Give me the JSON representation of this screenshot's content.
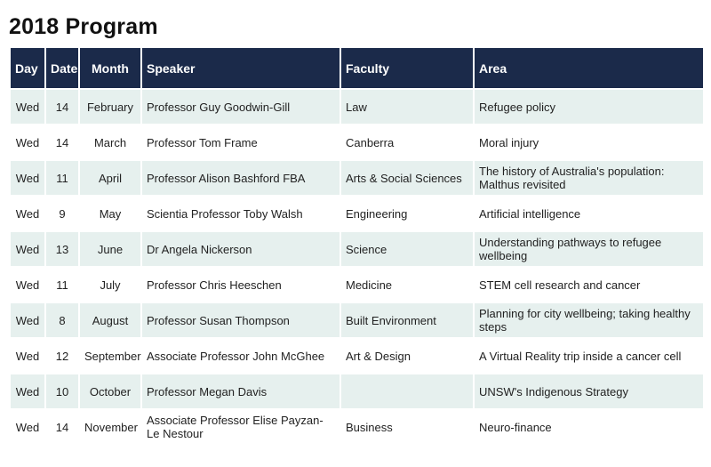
{
  "title": "2018 Program",
  "columns": {
    "day": "Day",
    "date": "Date",
    "month": "Month",
    "speaker": "Speaker",
    "faculty": "Faculty",
    "area": "Area"
  },
  "rows": [
    {
      "day": "Wed",
      "date": "14",
      "month": "February",
      "speaker": "Professor Guy Goodwin-Gill",
      "faculty": "Law",
      "area": "Refugee policy"
    },
    {
      "day": "Wed",
      "date": "14",
      "month": "March",
      "speaker": "Professor Tom Frame",
      "faculty": "Canberra",
      "area": "Moral injury"
    },
    {
      "day": "Wed",
      "date": "11",
      "month": "April",
      "speaker": "Professor Alison Bashford FBA",
      "faculty": "Arts & Social Sciences",
      "area": "The history of Australia's population: Malthus revisited"
    },
    {
      "day": "Wed",
      "date": "9",
      "month": "May",
      "speaker": "Scientia Professor Toby Walsh",
      "faculty": "Engineering",
      "area": "Artificial intelligence"
    },
    {
      "day": "Wed",
      "date": "13",
      "month": "June",
      "speaker": "Dr Angela Nickerson",
      "faculty": "Science",
      "area": "Understanding pathways to refugee wellbeing"
    },
    {
      "day": "Wed",
      "date": "11",
      "month": "July",
      "speaker": "Professor Chris Heeschen",
      "faculty": "Medicine",
      "area": "STEM cell research and cancer"
    },
    {
      "day": "Wed",
      "date": "8",
      "month": "August",
      "speaker": "Professor Susan Thompson",
      "faculty": "Built Environment",
      "area": "Planning for city wellbeing; taking healthy steps"
    },
    {
      "day": "Wed",
      "date": "12",
      "month": "September",
      "speaker": "Associate Professor John McGhee",
      "faculty": "Art & Design",
      "area": "A Virtual Reality trip inside a cancer cell"
    },
    {
      "day": "Wed",
      "date": "10",
      "month": "October",
      "speaker": "Professor Megan Davis",
      "faculty": "",
      "area": "UNSW's Indigenous Strategy"
    },
    {
      "day": "Wed",
      "date": "14",
      "month": "November",
      "speaker": "Associate Professor Elise Payzan-Le Nestour",
      "faculty": "Business",
      "area": "Neuro-finance"
    }
  ]
}
